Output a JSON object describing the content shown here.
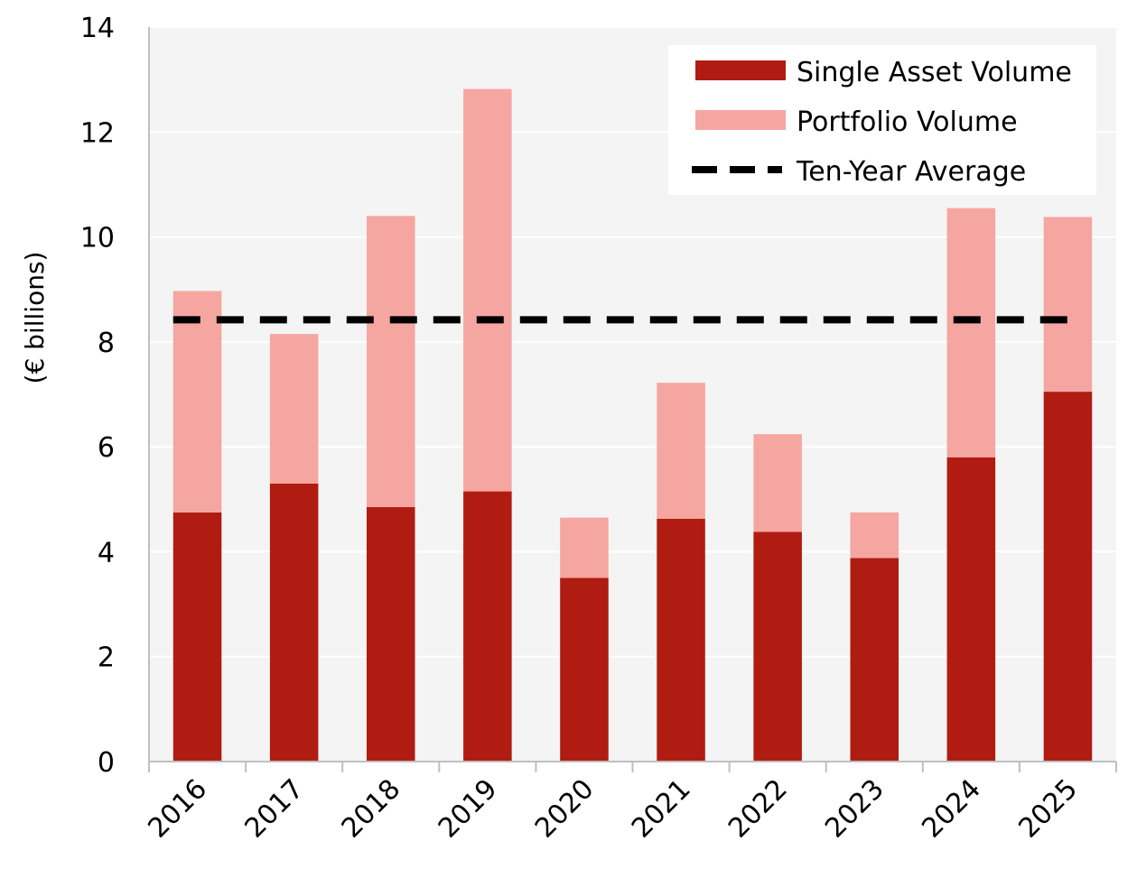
{
  "chart_data": {
    "type": "bar",
    "stacked": true,
    "categories": [
      "2016",
      "2017",
      "2018",
      "2019",
      "2020",
      "2021",
      "2022",
      "2023",
      "2024",
      "2025"
    ],
    "series": [
      {
        "name": "Single Asset Volume",
        "color": "#b01c12",
        "values": [
          4.75,
          5.3,
          4.85,
          5.15,
          3.5,
          4.63,
          4.38,
          3.88,
          5.8,
          7.05
        ]
      },
      {
        "name": "Portfolio Volume",
        "color": "#f6a6a1",
        "values": [
          4.22,
          2.85,
          5.55,
          7.67,
          1.15,
          2.59,
          1.86,
          0.87,
          4.75,
          3.33
        ]
      }
    ],
    "reference_line": {
      "name": "Ten-Year Average",
      "value": 8.42,
      "color": "#000000",
      "style": "dashed"
    },
    "title": "",
    "xlabel": "",
    "ylabel": "(€ billions)",
    "ylim": [
      0,
      14
    ],
    "yticks": [
      0,
      2,
      4,
      6,
      8,
      10,
      12,
      14
    ],
    "grid": true,
    "legend_position": "top-right",
    "plot_background": "#f4f4f4"
  }
}
